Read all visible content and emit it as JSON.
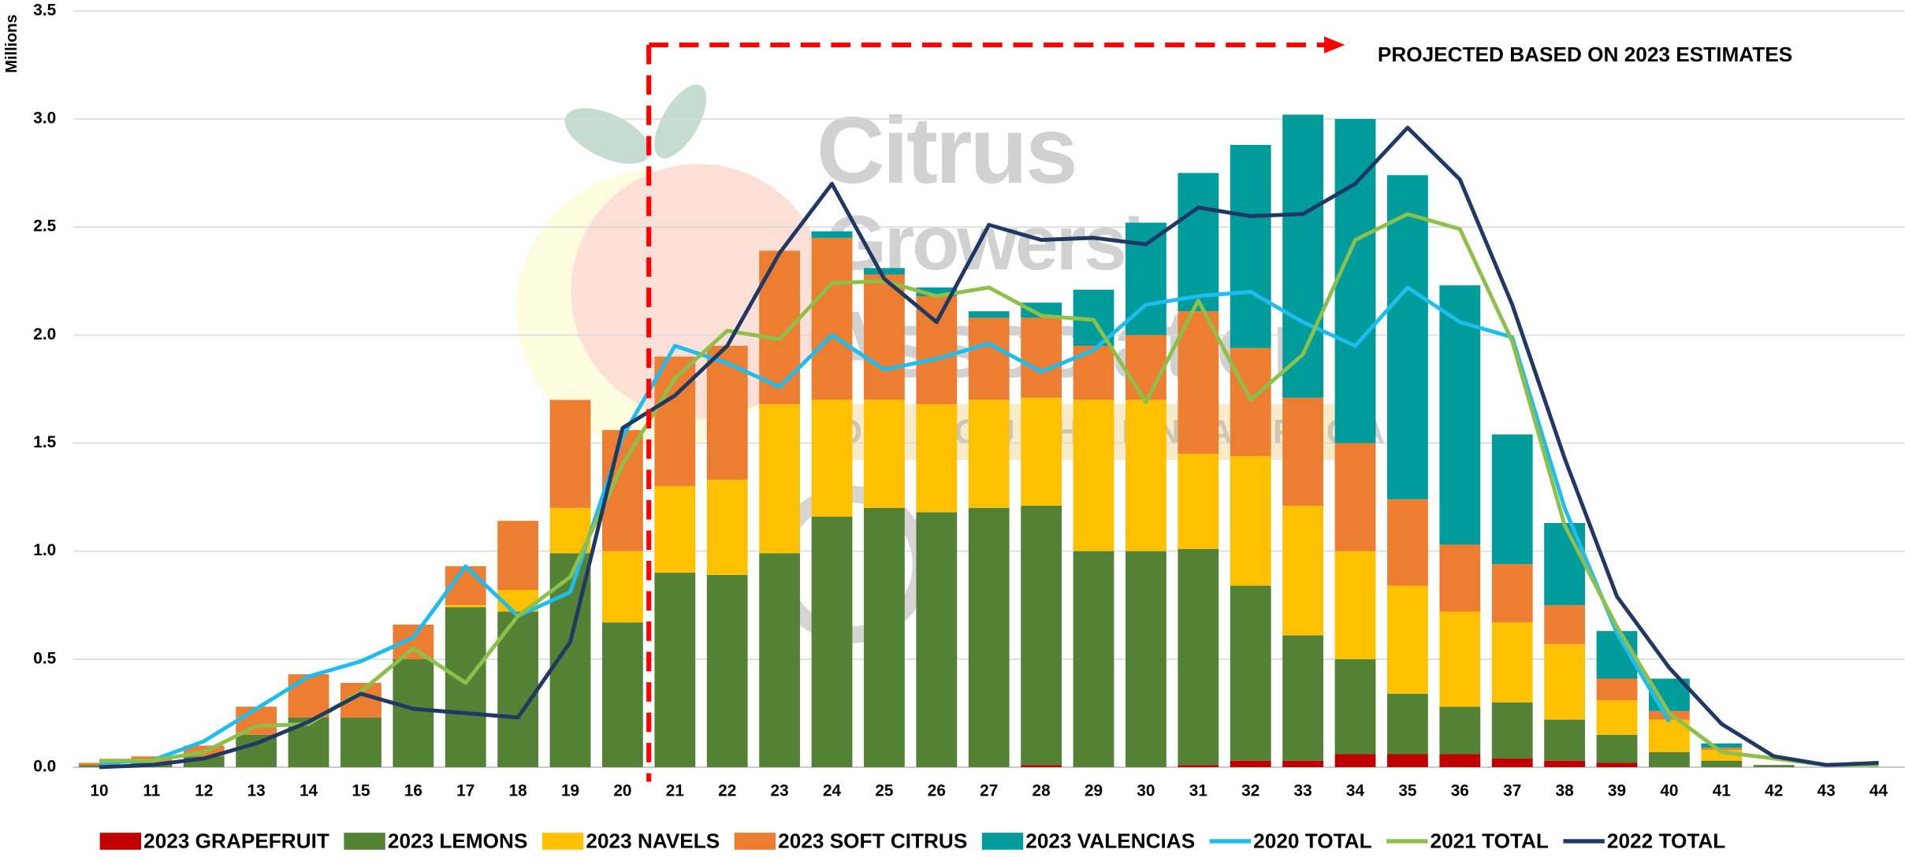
{
  "chart_data": {
    "type": "bar",
    "stacked": true,
    "y_label": "Millions",
    "annotation": "PROJECTED BASED ON 2023 ESTIMATES",
    "watermark": [
      "Citrus",
      "Growers'",
      "Association",
      "OF SOUTHERN AFRICA"
    ],
    "categories": [
      "10",
      "11",
      "12",
      "13",
      "14",
      "15",
      "16",
      "17",
      "18",
      "19",
      "20",
      "21",
      "22",
      "23",
      "24",
      "25",
      "26",
      "27",
      "28",
      "29",
      "30",
      "31",
      "32",
      "33",
      "34",
      "35",
      "36",
      "37",
      "38",
      "39",
      "40",
      "41",
      "42",
      "43",
      "44"
    ],
    "ylim": [
      0,
      3.5
    ],
    "yticks": [
      {
        "value": 0,
        "label": "0.0"
      },
      0.5,
      {
        "value": 1,
        "label": "1.0"
      },
      1.5,
      {
        "value": 2,
        "label": "2.0"
      },
      2.5,
      {
        "value": 3,
        "label": "3.0"
      },
      3.5
    ],
    "grid": true,
    "legend": "bottom",
    "series": [
      {
        "name": "2023 GRAPEFRUIT",
        "type": "bar",
        "color": "#c00000",
        "values": [
          0,
          0,
          0,
          0,
          0,
          0,
          0,
          0,
          0,
          0,
          0,
          0,
          0,
          0,
          0,
          0,
          0,
          0,
          0.01,
          0,
          0,
          0.01,
          0.03,
          0.03,
          0.06,
          0.06,
          0.06,
          0.04,
          0.03,
          0.02,
          0,
          0,
          0,
          0,
          0
        ]
      },
      {
        "name": "2023 LEMONS",
        "type": "bar",
        "color": "#548235",
        "values": [
          0.01,
          0.02,
          0.05,
          0.15,
          0.23,
          0.23,
          0.5,
          0.74,
          0.72,
          0.99,
          0.67,
          0.9,
          0.89,
          0.99,
          1.16,
          1.2,
          1.18,
          1.2,
          1.2,
          1.0,
          1.0,
          1.0,
          0.81,
          0.58,
          0.44,
          0.28,
          0.22,
          0.26,
          0.19,
          0.13,
          0.07,
          0.03,
          0.01,
          0,
          0
        ]
      },
      {
        "name": "2023 NAVELS",
        "type": "bar",
        "color": "#ffc000",
        "values": [
          0,
          0,
          0,
          0,
          0,
          0,
          0,
          0.01,
          0.1,
          0.21,
          0.33,
          0.4,
          0.44,
          0.69,
          0.54,
          0.5,
          0.5,
          0.5,
          0.5,
          0.7,
          0.7,
          0.44,
          0.6,
          0.6,
          0.5,
          0.5,
          0.44,
          0.37,
          0.35,
          0.16,
          0.15,
          0.05,
          0,
          0,
          0
        ]
      },
      {
        "name": "2023 SOFT CITRUS",
        "type": "bar",
        "color": "#ed7d31",
        "values": [
          0.01,
          0.03,
          0.05,
          0.13,
          0.2,
          0.16,
          0.16,
          0.18,
          0.32,
          0.5,
          0.56,
          0.6,
          0.62,
          0.71,
          0.75,
          0.58,
          0.5,
          0.38,
          0.37,
          0.25,
          0.3,
          0.66,
          0.5,
          0.5,
          0.5,
          0.4,
          0.31,
          0.27,
          0.18,
          0.1,
          0.04,
          0.01,
          0,
          0,
          0
        ]
      },
      {
        "name": "2023 VALENCIAS",
        "type": "bar",
        "color": "#009b9b",
        "values": [
          0,
          0,
          0,
          0,
          0,
          0,
          0,
          0,
          0,
          0,
          0,
          0,
          0,
          0,
          0.03,
          0.03,
          0.04,
          0.03,
          0.07,
          0.26,
          0.52,
          0.64,
          0.94,
          1.31,
          1.5,
          1.5,
          1.2,
          0.6,
          0.38,
          0.22,
          0.15,
          0.02,
          0,
          0,
          0
        ]
      },
      {
        "name": "2020 TOTAL",
        "type": "line",
        "color": "#1ebdf0",
        "values": [
          0.02,
          0.03,
          0.12,
          0.27,
          0.42,
          0.49,
          0.6,
          0.93,
          0.7,
          0.81,
          1.53,
          1.95,
          1.87,
          1.76,
          2.0,
          1.84,
          1.89,
          1.96,
          1.83,
          1.93,
          2.14,
          2.18,
          2.2,
          2.06,
          1.95,
          2.22,
          2.06,
          1.99,
          1.2,
          0.62,
          0.21,
          null,
          null,
          null,
          null
        ]
      },
      {
        "name": "2021 TOTAL",
        "type": "line",
        "color": "#8cc04b",
        "values": [
          0.03,
          0.03,
          0.07,
          0.19,
          0.2,
          0.35,
          0.55,
          0.39,
          0.7,
          0.88,
          1.4,
          1.8,
          2.02,
          1.98,
          2.24,
          2.25,
          2.18,
          2.22,
          2.09,
          2.07,
          1.69,
          2.16,
          1.7,
          1.91,
          2.44,
          2.56,
          2.49,
          1.97,
          1.12,
          0.65,
          0.25,
          0.07,
          0.04,
          0.01,
          0.01
        ]
      },
      {
        "name": "2022 TOTAL",
        "type": "line",
        "color": "#1f3864",
        "values": [
          0,
          0.01,
          0.04,
          0.11,
          0.21,
          0.34,
          0.27,
          0.25,
          0.23,
          0.58,
          1.57,
          1.72,
          1.95,
          2.38,
          2.7,
          2.26,
          2.06,
          2.51,
          2.44,
          2.45,
          2.42,
          2.59,
          2.55,
          2.56,
          2.7,
          2.96,
          2.72,
          2.14,
          1.43,
          0.79,
          0.46,
          0.2,
          0.05,
          0.01,
          0.02
        ]
      }
    ]
  }
}
